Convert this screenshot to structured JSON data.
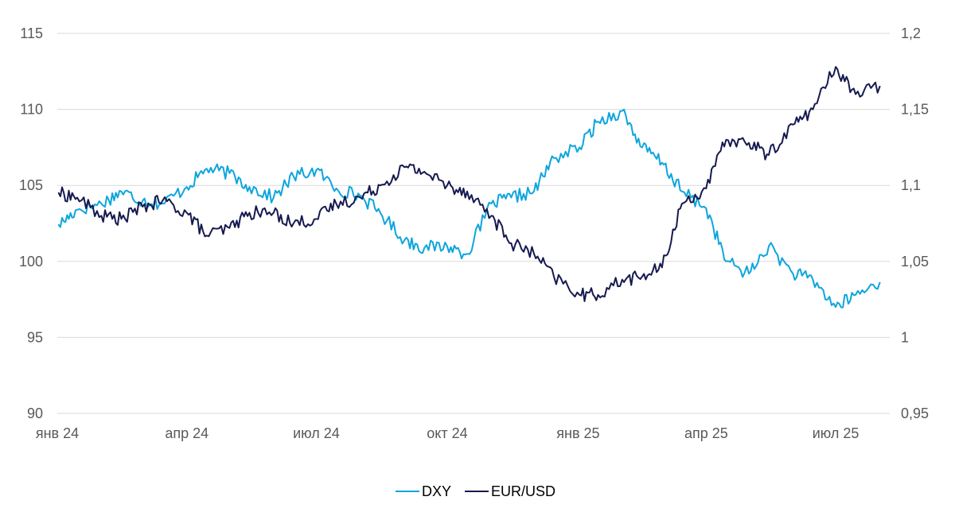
{
  "chart_data": {
    "type": "line",
    "title": "",
    "xlabel": "",
    "ylabel": "",
    "x_tick_labels": [
      "янв 24",
      "апр 24",
      "июл 24",
      "окт 24",
      "янв 25",
      "апр 25",
      "июл 25"
    ],
    "y_left": {
      "min": 90,
      "max": 115,
      "ticks": [
        90,
        95,
        100,
        105,
        110,
        115
      ]
    },
    "y_right": {
      "min": 0.95,
      "max": 1.2,
      "ticks": [
        "0,95",
        "1",
        "1,05",
        "1,1",
        "1,15",
        "1,2"
      ]
    },
    "grid": "horizontal",
    "legend_position": "bottom",
    "x_dates": [
      "2024-01-02",
      "2024-01-15",
      "2024-02-01",
      "2024-02-15",
      "2024-03-01",
      "2024-03-15",
      "2024-04-01",
      "2024-04-15",
      "2024-05-01",
      "2024-05-15",
      "2024-06-01",
      "2024-06-15",
      "2024-07-01",
      "2024-07-15",
      "2024-08-01",
      "2024-08-15",
      "2024-09-01",
      "2024-09-15",
      "2024-10-01",
      "2024-10-15",
      "2024-11-01",
      "2024-11-15",
      "2024-12-01",
      "2024-12-15",
      "2025-01-02",
      "2025-01-15",
      "2025-02-01",
      "2025-02-15",
      "2025-03-01",
      "2025-03-15",
      "2025-04-01",
      "2025-04-15",
      "2025-05-01",
      "2025-05-15",
      "2025-06-01",
      "2025-06-15",
      "2025-07-01",
      "2025-07-15",
      "2025-08-01"
    ],
    "series": [
      {
        "name": "DXY",
        "axis": "left",
        "color": "#0ea5dd",
        "values": [
          102.4,
          103.4,
          103.8,
          104.6,
          104.0,
          103.8,
          104.9,
          106.1,
          105.8,
          104.9,
          104.2,
          105.6,
          106.0,
          104.8,
          104.3,
          103.2,
          101.4,
          100.9,
          101.0,
          100.5,
          103.8,
          104.2,
          104.6,
          106.8,
          107.5,
          109.2,
          109.9,
          107.5,
          106.5,
          104.6,
          103.5,
          100.0,
          99.2,
          101.0,
          99.2,
          98.8,
          97.0,
          97.8,
          98.6
        ]
      },
      {
        "name": "EUR/USD",
        "axis": "right",
        "color": "#161a4f",
        "values": [
          1.095,
          1.092,
          1.08,
          1.078,
          1.086,
          1.09,
          1.082,
          1.067,
          1.072,
          1.082,
          1.082,
          1.075,
          1.078,
          1.088,
          1.092,
          1.1,
          1.112,
          1.109,
          1.1,
          1.096,
          1.08,
          1.062,
          1.055,
          1.04,
          1.028,
          1.028,
          1.038,
          1.04,
          1.046,
          1.088,
          1.098,
          1.13,
          1.128,
          1.12,
          1.14,
          1.15,
          1.178,
          1.16,
          1.165
        ]
      }
    ]
  }
}
